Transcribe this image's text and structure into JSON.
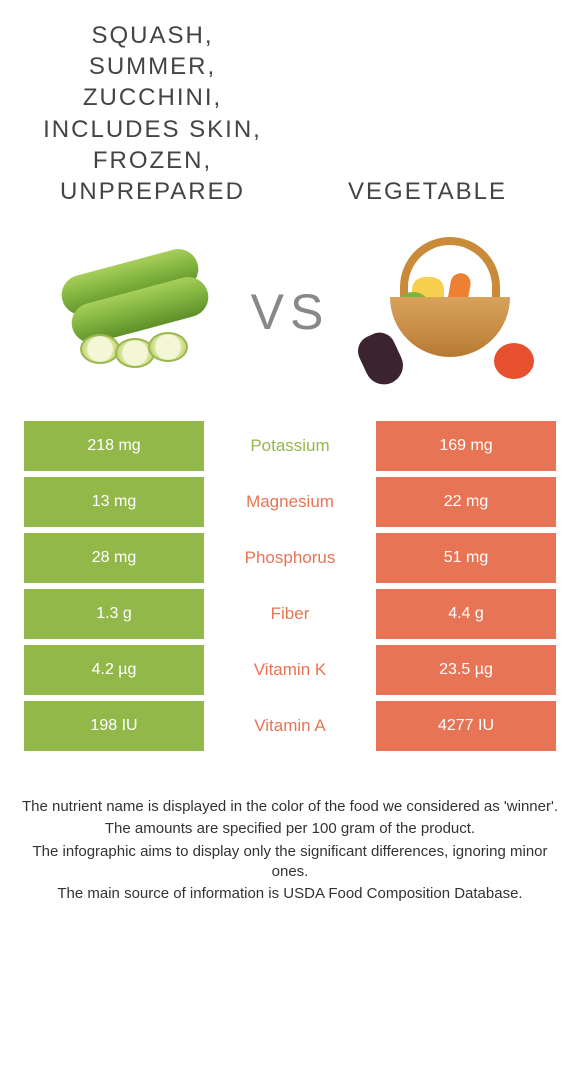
{
  "colors": {
    "left": "#93b84a",
    "right": "#e87456",
    "mid_bg": "#ffffff",
    "cell_text": "#ffffff",
    "vs_text": "#888888",
    "title_text": "#444444",
    "body_text": "#333333"
  },
  "header": {
    "left_title": "Squash, summer, zucchini, includes skin, frozen, unprepared",
    "right_title": "Vegetable",
    "vs_label": "VS",
    "title_fontsize": 24,
    "title_letter_spacing": 2
  },
  "rows": [
    {
      "nutrient": "Potassium",
      "left": "218 mg",
      "right": "169 mg",
      "winner": "left"
    },
    {
      "nutrient": "Magnesium",
      "left": "13 mg",
      "right": "22 mg",
      "winner": "right"
    },
    {
      "nutrient": "Phosphorus",
      "left": "28 mg",
      "right": "51 mg",
      "winner": "right"
    },
    {
      "nutrient": "Fiber",
      "left": "1.3 g",
      "right": "4.4 g",
      "winner": "right"
    },
    {
      "nutrient": "Vitamin K",
      "left": "4.2 µg",
      "right": "23.5 µg",
      "winner": "right"
    },
    {
      "nutrient": "Vitamin A",
      "left": "198 IU",
      "right": "4277 IU",
      "winner": "right"
    }
  ],
  "row_style": {
    "height": 50,
    "gap": 6,
    "cell_fontsize": 16,
    "mid_fontsize": 17
  },
  "notes": [
    "The nutrient name is displayed in the color of the food we considered as 'winner'.",
    "The amounts are specified per 100 gram of the product.",
    "The infographic aims to display only the significant differences, ignoring minor ones.",
    "The main source of information is USDA Food Composition Database."
  ]
}
